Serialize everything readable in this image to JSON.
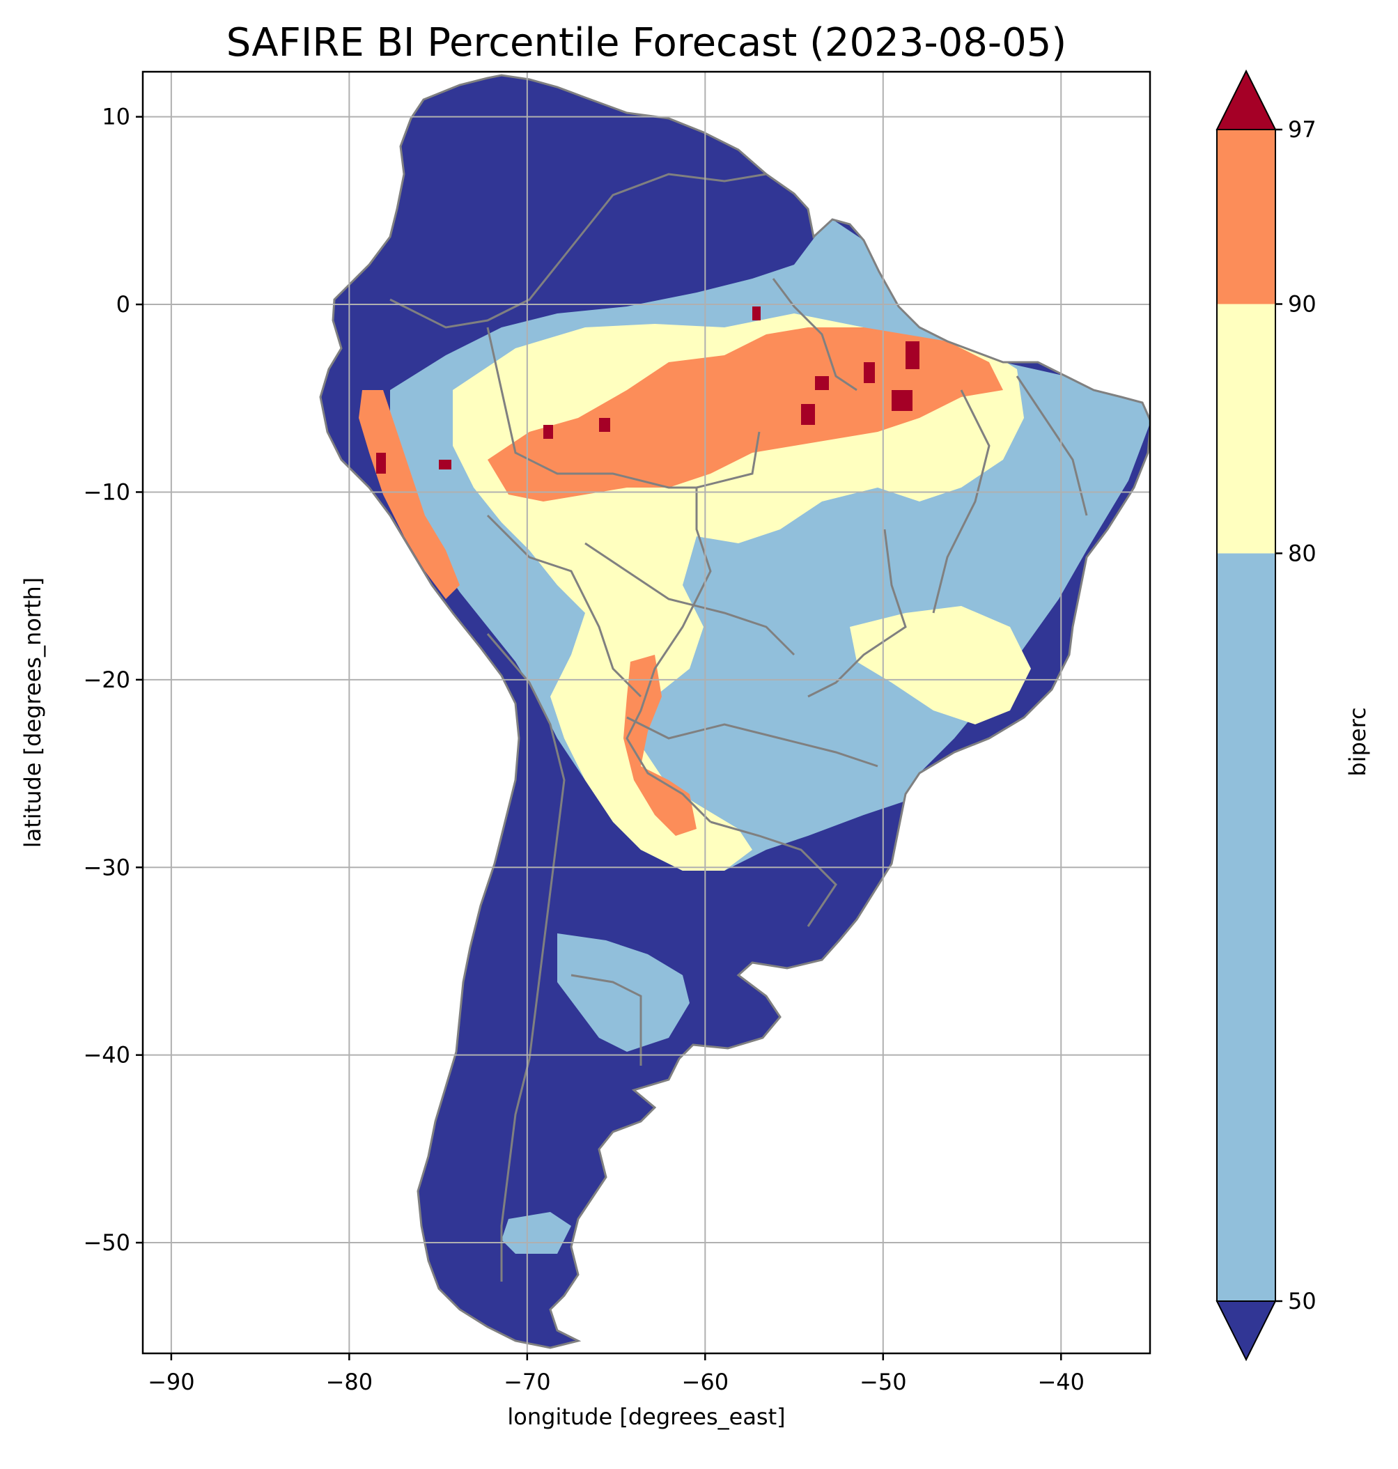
{
  "title": "SAFIRE BI Percentile Forecast (2023-08-05)",
  "chart_data": {
    "type": "heatmap",
    "title": "SAFIRE BI Percentile Forecast (2023-08-05)",
    "xlabel": "longitude [degrees_east]",
    "ylabel": "latitude [degrees_north]",
    "xlim": [
      -91.6,
      -35.0
    ],
    "ylim": [
      -55.9,
      12.4
    ],
    "xticks": [
      -90,
      -80,
      -70,
      -60,
      -50,
      -40
    ],
    "yticks": [
      10,
      0,
      -10,
      -20,
      -30,
      -40,
      -50
    ],
    "xtick_labels": [
      "−90",
      "−80",
      "−70",
      "−60",
      "−50",
      "−40"
    ],
    "ytick_labels": [
      "10",
      "0",
      "−10",
      "−20",
      "−30",
      "−40",
      "−50"
    ],
    "grid": true,
    "colorbar": {
      "label": "biperc",
      "levels": [
        50,
        80,
        90,
        97
      ],
      "tick_labels": [
        "50",
        "80",
        "90",
        "97"
      ],
      "colors": {
        "under": "#313695",
        "50-80": "#91bfdb",
        "80-90": "#ffffbf",
        "90-97": "#fc8d59",
        "over": "#a50026"
      },
      "extend": "both"
    },
    "border_color": "#808080",
    "regions": [
      {
        "name": "north-andes-caribbean",
        "class": "under"
      },
      {
        "name": "amazon-north-band",
        "class": "50-80"
      },
      {
        "name": "amazon-central",
        "class": "90-97"
      },
      {
        "name": "amazon-hotspots",
        "class": "over"
      },
      {
        "name": "central-brazil",
        "class": "80-90"
      },
      {
        "name": "south-brazil-cerrado",
        "class": "50-80"
      },
      {
        "name": "chaco",
        "class": "90-97"
      },
      {
        "name": "pampas-patagonia",
        "class": "under"
      },
      {
        "name": "patagonia-interior",
        "class": "50-80"
      }
    ]
  }
}
